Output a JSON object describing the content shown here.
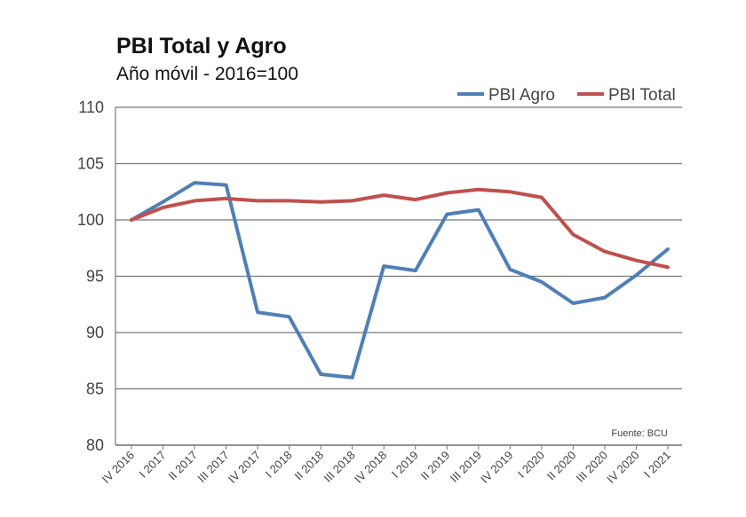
{
  "title": "PBI Total y Agro",
  "subtitle": "Año móvil - 2016=100",
  "source": "Fuente: BCU",
  "chart_data": {
    "type": "line",
    "x": [
      "IV 2016",
      "I 2017",
      "II 2017",
      "III 2017",
      "IV 2017",
      "I 2018",
      "II 2018",
      "III 2018",
      "IV 2018",
      "I 2019",
      "II 2019",
      "III 2019",
      "IV 2019",
      "I 2020",
      "II 2020",
      "III 2020",
      "IV 2020",
      "I 2021"
    ],
    "ylim": [
      80,
      110
    ],
    "yticks": [
      110,
      105,
      100,
      95,
      90,
      85,
      80
    ],
    "grid": true,
    "legend": "top-right",
    "series": [
      {
        "name": "PBI Agro",
        "color": "#4f7fb6",
        "values": [
          100,
          101.6,
          103.3,
          103.1,
          91.8,
          91.4,
          86.3,
          86.0,
          95.9,
          95.5,
          100.5,
          100.9,
          95.6,
          94.5,
          92.6,
          93.1,
          95.1,
          97.4
        ]
      },
      {
        "name": "PBI Total",
        "color": "#c0504d",
        "values": [
          100,
          101.1,
          101.7,
          101.9,
          101.7,
          101.7,
          101.6,
          101.7,
          102.2,
          101.8,
          102.4,
          102.7,
          102.5,
          102.0,
          98.7,
          97.2,
          96.4,
          95.8
        ]
      }
    ]
  }
}
